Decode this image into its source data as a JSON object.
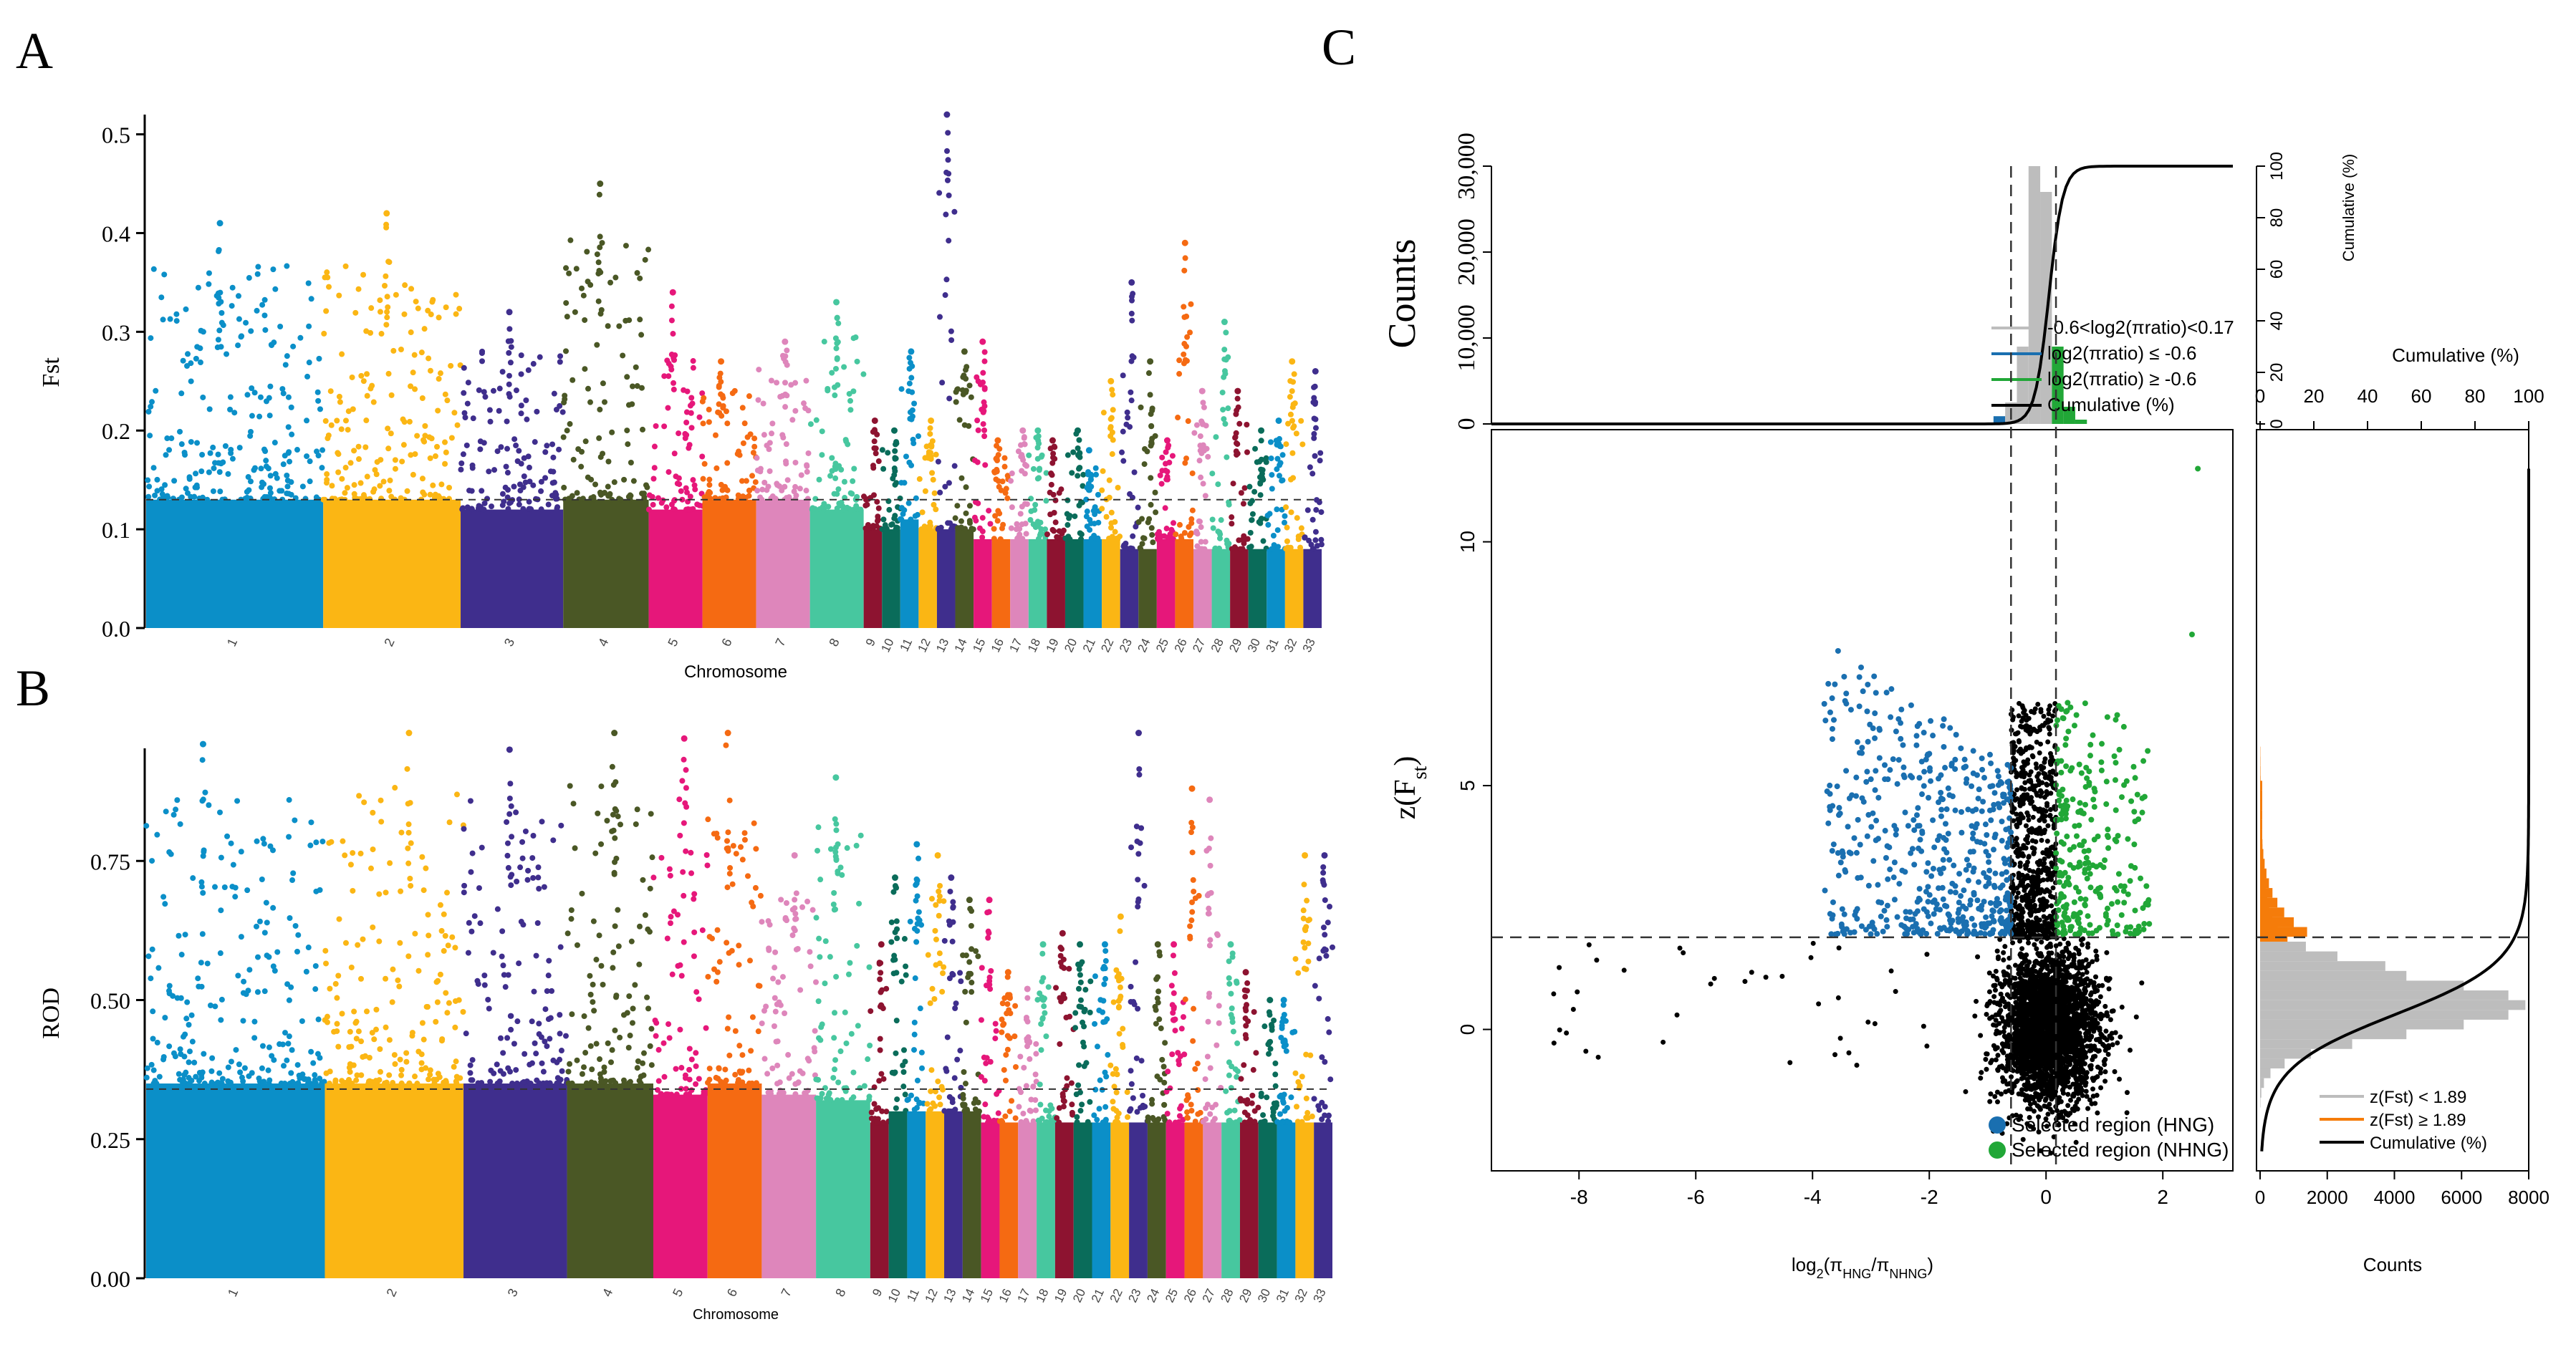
{
  "palette": [
    "#0b8fc8",
    "#fbb614",
    "#3f2e8d",
    "#4a5725",
    "#e6177a",
    "#f56a12",
    "#de86bb",
    "#47c79f",
    "#8d1330",
    "#0a6c5a"
  ],
  "colors": {
    "blue": "#1a6fb0",
    "green": "#21a737",
    "orange": "#f57c0a",
    "gray": "#bdbdbd",
    "black": "#000000"
  },
  "chart_data": [
    {
      "type": "scatter",
      "panel_label": "A",
      "xlabel": "Chromosome",
      "ylabel": "Fst",
      "ylim": [
        0,
        0.52
      ],
      "yticks": [
        "0.0",
        "0.1",
        "0.2",
        "0.3",
        "0.4",
        "0.5"
      ],
      "threshold": 0.13,
      "chromosomes": [
        "1",
        "2",
        "3",
        "4",
        "5",
        "6",
        "7",
        "8",
        "9",
        "10",
        "11",
        "12",
        "13",
        "14",
        "15",
        "16",
        "17",
        "18",
        "19",
        "20",
        "21",
        "22",
        "23",
        "24",
        "25",
        "26",
        "27",
        "28",
        "29",
        "30",
        "31",
        "32",
        "33"
      ],
      "base_levels": [
        0.13,
        0.13,
        0.12,
        0.13,
        0.12,
        0.13,
        0.13,
        0.12,
        0.1,
        0.1,
        0.11,
        0.1,
        0.1,
        0.1,
        0.09,
        0.09,
        0.09,
        0.09,
        0.09,
        0.09,
        0.09,
        0.09,
        0.08,
        0.08,
        0.09,
        0.09,
        0.08,
        0.08,
        0.08,
        0.08,
        0.08,
        0.08,
        0.08
      ],
      "peak_values": [
        0.41,
        0.42,
        0.32,
        0.45,
        0.34,
        0.27,
        0.29,
        0.33,
        0.21,
        0.2,
        0.28,
        0.21,
        0.52,
        0.28,
        0.29,
        0.19,
        0.2,
        0.2,
        0.19,
        0.2,
        0.18,
        0.25,
        0.35,
        0.27,
        0.19,
        0.39,
        0.24,
        0.31,
        0.24,
        0.2,
        0.21,
        0.27,
        0.26
      ]
    },
    {
      "type": "scatter",
      "panel_label": "B",
      "xlabel": "Chromosome",
      "ylabel": "ROD",
      "ylim": [
        0,
        1.0
      ],
      "yticks": [
        "0.00",
        "0.25",
        "0.50",
        "0.75"
      ],
      "threshold": 0.34,
      "chromosomes": [
        "1",
        "2",
        "3",
        "4",
        "5",
        "6",
        "7",
        "8",
        "9",
        "10",
        "11",
        "12",
        "13",
        "14",
        "15",
        "16",
        "17",
        "18",
        "19",
        "20",
        "21",
        "22",
        "23",
        "24",
        "25",
        "26",
        "27",
        "28",
        "29",
        "30",
        "31",
        "32",
        "33"
      ],
      "base_levels": [
        0.35,
        0.35,
        0.35,
        0.35,
        0.33,
        0.35,
        0.33,
        0.32,
        0.28,
        0.3,
        0.3,
        0.3,
        0.3,
        0.3,
        0.28,
        0.28,
        0.28,
        0.28,
        0.28,
        0.28,
        0.28,
        0.28,
        0.28,
        0.28,
        0.28,
        0.28,
        0.28,
        0.28,
        0.28,
        0.28,
        0.28,
        0.28,
        0.28
      ],
      "peak_values": [
        0.96,
        0.98,
        0.95,
        0.98,
        0.97,
        0.98,
        0.76,
        0.9,
        0.6,
        0.72,
        0.78,
        0.76,
        0.72,
        0.68,
        0.68,
        0.55,
        0.52,
        0.6,
        0.62,
        0.6,
        0.6,
        0.65,
        0.98,
        0.6,
        0.6,
        0.88,
        0.86,
        0.6,
        0.55,
        0.5,
        0.5,
        0.76,
        0.76
      ]
    },
    {
      "type": "scatter",
      "panel_label": "C",
      "xlabel": "log2(πHNG/πNHNG)",
      "ylabel": "z(Fst)",
      "xlim": [
        -9.5,
        3.2
      ],
      "ylim": [
        -2.9,
        12.3
      ],
      "xticks": [
        "-8",
        "-6",
        "-4",
        "-2",
        "0",
        "2"
      ],
      "yticks": [
        "0",
        "5",
        "10"
      ],
      "vlines": [
        -0.6,
        0.17
      ],
      "hline": 1.89,
      "legend": [
        "Selected region (HNG)",
        "Selected region (NHNG)"
      ]
    },
    {
      "type": "bar",
      "panel_label": "C-top",
      "ylabel": "Counts",
      "right_ylabel": "Cumulative (%)",
      "yticks": [
        "0",
        "10,000",
        "20,000",
        "30,000"
      ],
      "right_yticks": [
        "0",
        "20",
        "40",
        "60",
        "80",
        "100"
      ],
      "histogram": {
        "x": [
          -0.8,
          -0.6,
          -0.4,
          -0.2,
          0.0,
          0.2,
          0.4,
          0.6
        ],
        "counts": [
          900,
          2500,
          9000,
          30000,
          27000,
          9000,
          2000,
          500
        ]
      },
      "legend": [
        "-0.6<log2(πratio)<0.17",
        "log2(πratio) ≤ -0.6",
        "log2(πratio) ≥ -0.6",
        "Cumulative (%)"
      ]
    },
    {
      "type": "bar",
      "panel_label": "C-right",
      "xlabel": "Counts",
      "top_xlabel": "Cumulative (%)",
      "xticks": [
        "0",
        "2000",
        "4000",
        "6000",
        "8000"
      ],
      "top_xticks": [
        "0",
        "20",
        "40",
        "60",
        "80",
        "100"
      ],
      "histogram": {
        "z": [
          -1.5,
          -1.0,
          -0.5,
          0.0,
          0.5,
          1.0,
          1.5,
          2.0,
          2.5,
          3.0,
          4.0,
          5.0
        ],
        "counts": [
          400,
          1600,
          3500,
          6000,
          7900,
          6500,
          4000,
          1400,
          600,
          300,
          80,
          20
        ]
      },
      "legend": [
        "z(Fst) < 1.89",
        "z(Fst) ≥ 1.89",
        "Cumulative (%)"
      ]
    }
  ]
}
